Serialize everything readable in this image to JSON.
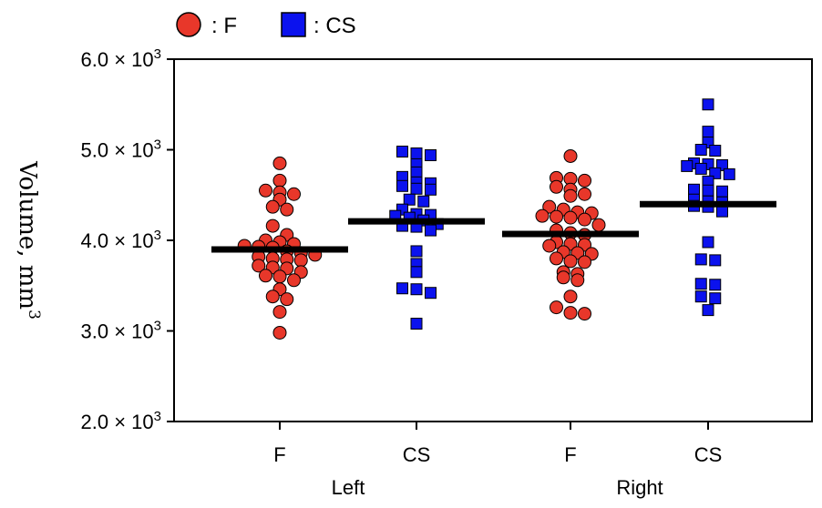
{
  "chart_data": {
    "type": "scatter",
    "title": "",
    "ylabel_main": "Volume, mm",
    "ylabel_sup": "3",
    "ylim": [
      2000,
      6000
    ],
    "yticks": [
      {
        "value": 2000,
        "mant": "2.0 × 10",
        "exp": "3"
      },
      {
        "value": 3000,
        "mant": "3.0 × 10",
        "exp": "3"
      },
      {
        "value": 4000,
        "mant": "4.0 × 10",
        "exp": "3"
      },
      {
        "value": 5000,
        "mant": "5.0 × 10",
        "exp": "3"
      },
      {
        "value": 6000,
        "mant": "6.0 × 10",
        "exp": "3"
      }
    ],
    "categories": [
      "F",
      "CS",
      "F",
      "CS"
    ],
    "groups": [
      "Left",
      "Right"
    ],
    "legend": {
      "placement": "top-left",
      "items": [
        {
          "label": ": F",
          "marker": "circle",
          "color": "#e8372a"
        },
        {
          "label": ": CS",
          "marker": "square",
          "color": "#0b12ee"
        }
      ]
    },
    "series": [
      {
        "category": "F",
        "group": "Left",
        "marker": "circle",
        "color": "#e8372a",
        "mean": 3900,
        "values": [
          4850,
          4660,
          4550,
          4530,
          4510,
          4450,
          4370,
          4340,
          4160,
          4060,
          4000,
          3980,
          3960,
          3940,
          3930,
          3920,
          3880,
          3860,
          3840,
          3820,
          3800,
          3790,
          3780,
          3720,
          3700,
          3690,
          3650,
          3610,
          3600,
          3560,
          3460,
          3380,
          3350,
          3210,
          2980
        ]
      },
      {
        "category": "CS",
        "group": "Left",
        "marker": "square",
        "color": "#0b12ee",
        "mean": 4210,
        "values": [
          4980,
          4960,
          4940,
          4840,
          4750,
          4700,
          4640,
          4630,
          4600,
          4570,
          4560,
          4450,
          4430,
          4340,
          4290,
          4280,
          4270,
          4250,
          4220,
          4180,
          4160,
          4150,
          4110,
          3880,
          3740,
          3650,
          3470,
          3460,
          3420,
          3080
        ]
      },
      {
        "category": "F",
        "group": "Right",
        "marker": "circle",
        "color": "#e8372a",
        "mean": 4070,
        "values": [
          4930,
          4690,
          4680,
          4660,
          4590,
          4560,
          4510,
          4490,
          4370,
          4340,
          4310,
          4300,
          4270,
          4260,
          4250,
          4230,
          4170,
          4110,
          4080,
          4060,
          3980,
          3960,
          3950,
          3940,
          3870,
          3860,
          3850,
          3800,
          3770,
          3760,
          3650,
          3630,
          3590,
          3560,
          3380,
          3260,
          3200,
          3190
        ]
      },
      {
        "category": "CS",
        "group": "Right",
        "marker": "square",
        "color": "#0b12ee",
        "mean": 4400,
        "values": [
          5500,
          5200,
          5080,
          5000,
          4990,
          4850,
          4840,
          4830,
          4820,
          4790,
          4740,
          4730,
          4650,
          4560,
          4550,
          4540,
          4450,
          4430,
          4420,
          4380,
          4370,
          4320,
          3980,
          3790,
          3780,
          3520,
          3510,
          3380,
          3360,
          3230
        ]
      }
    ]
  }
}
